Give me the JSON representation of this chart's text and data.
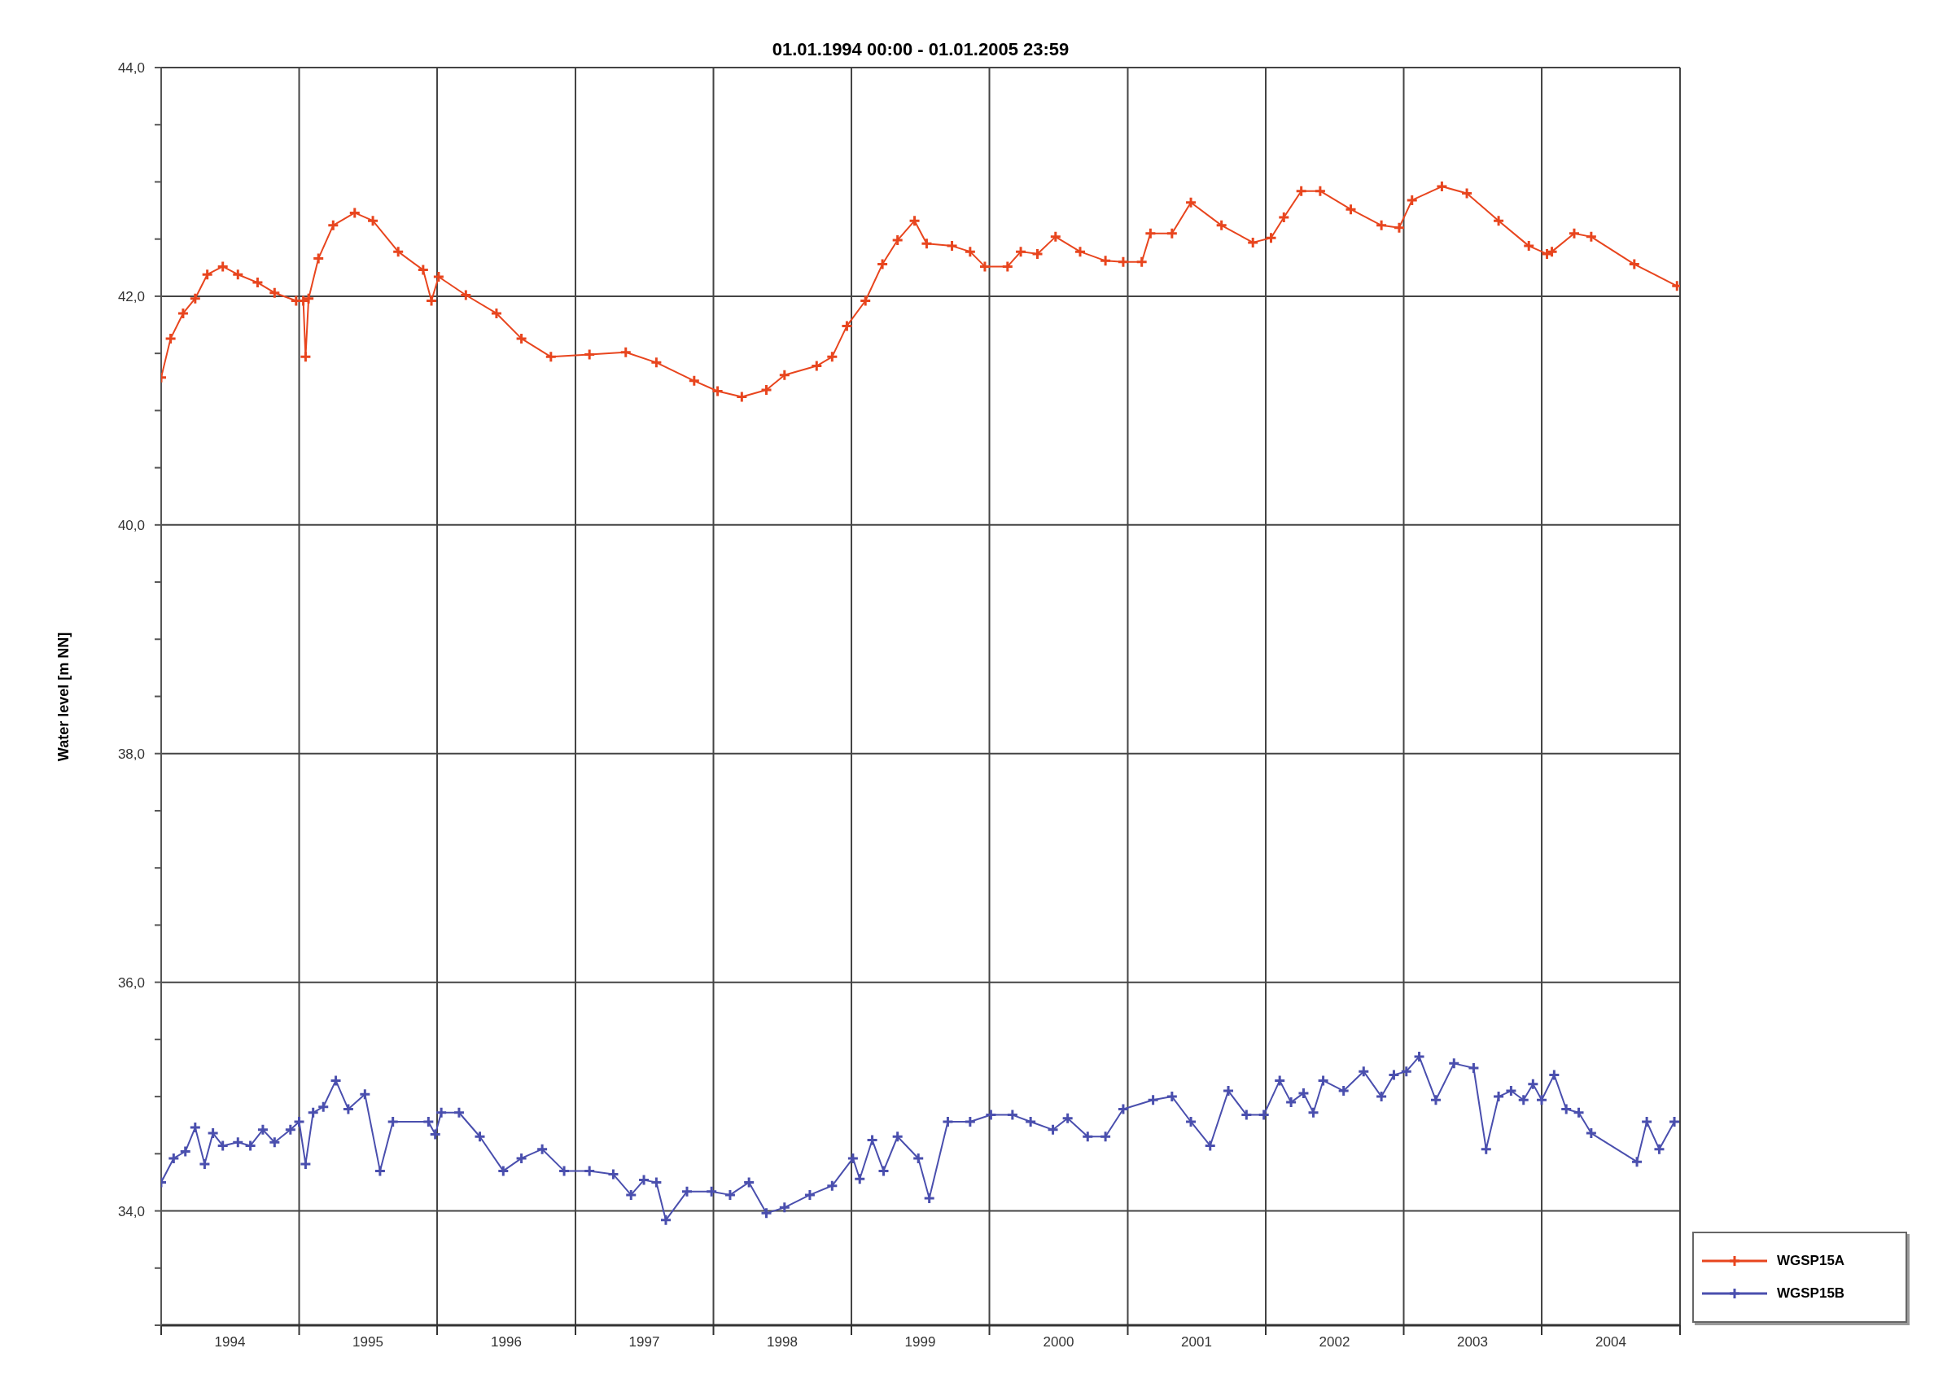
{
  "chart_data": {
    "type": "line",
    "title": "01.01.1994 00:00 - 01.01.2005 23:59",
    "ylabel": "Water level [m NN]",
    "xlim": [
      "1994-01-01",
      "2005-01-01"
    ],
    "xticks": [
      {
        "value": "1994-01-01",
        "label": null
      },
      {
        "value": "1994-07-02",
        "label": "1994"
      },
      {
        "value": "1995-01-01",
        "label": null
      },
      {
        "value": "1995-07-02",
        "label": "1995"
      },
      {
        "value": "1996-01-01",
        "label": null
      },
      {
        "value": "1996-07-02",
        "label": "1996"
      },
      {
        "value": "1997-01-01",
        "label": null
      },
      {
        "value": "1997-07-02",
        "label": "1997"
      },
      {
        "value": "1998-01-01",
        "label": null
      },
      {
        "value": "1998-07-02",
        "label": "1998"
      },
      {
        "value": "1999-01-01",
        "label": null
      },
      {
        "value": "1999-07-02",
        "label": "1999"
      },
      {
        "value": "2000-01-01",
        "label": null
      },
      {
        "value": "2000-07-02",
        "label": "2000"
      },
      {
        "value": "2001-01-01",
        "label": null
      },
      {
        "value": "2001-07-02",
        "label": "2001"
      },
      {
        "value": "2002-01-01",
        "label": null
      },
      {
        "value": "2002-07-02",
        "label": "2002"
      },
      {
        "value": "2003-01-01",
        "label": null
      },
      {
        "value": "2003-07-02",
        "label": "2003"
      },
      {
        "value": "2004-01-01",
        "label": null
      },
      {
        "value": "2004-07-02",
        "label": "2004"
      },
      {
        "value": "2005-01-01",
        "label": null
      }
    ],
    "ylim": [
      33,
      44
    ],
    "yticks": [
      {
        "value": 33,
        "label": null
      },
      {
        "value": 33.5,
        "label": null
      },
      {
        "value": 34,
        "label": "34,0"
      },
      {
        "value": 34.5,
        "label": null
      },
      {
        "value": 35,
        "label": null
      },
      {
        "value": 35.5,
        "label": null
      },
      {
        "value": 36,
        "label": "36,0"
      },
      {
        "value": 36.5,
        "label": null
      },
      {
        "value": 37,
        "label": null
      },
      {
        "value": 37.5,
        "label": null
      },
      {
        "value": 38,
        "label": "38,0"
      },
      {
        "value": 38.5,
        "label": null
      },
      {
        "value": 39,
        "label": null
      },
      {
        "value": 39.5,
        "label": null
      },
      {
        "value": 40,
        "label": "40,0"
      },
      {
        "value": 40.5,
        "label": null
      },
      {
        "value": 41,
        "label": null
      },
      {
        "value": 41.5,
        "label": null
      },
      {
        "value": 42,
        "label": "42,0"
      },
      {
        "value": 42.5,
        "label": null
      },
      {
        "value": 43,
        "label": null
      },
      {
        "value": 43.5,
        "label": null
      },
      {
        "value": 44,
        "label": "44,0"
      }
    ],
    "grid": true,
    "legend": "bottom right",
    "marker": "cross",
    "line_style": "solid",
    "series": [
      {
        "name": "WGSP15A",
        "color": "#e8451e",
        "x": [
          "1994-01-01",
          "1994-01-26",
          "1994-02-28",
          "1994-04-01",
          "1994-05-03",
          "1994-06-13",
          "1994-07-23",
          "1994-09-13",
          "1994-10-28",
          "1994-12-24",
          "1995-01-12",
          "1995-01-18",
          "1995-01-26",
          "1995-02-21",
          "1995-04-01",
          "1995-05-28",
          "1995-07-15",
          "1995-09-20",
          "1995-11-25",
          "1995-12-17",
          "1996-01-05",
          "1996-03-17",
          "1996-06-06",
          "1996-08-11",
          "1996-10-28",
          "1997-02-07",
          "1997-05-14",
          "1997-08-03",
          "1997-11-11",
          "1998-01-12",
          "1998-03-17",
          "1998-05-21",
          "1998-07-08",
          "1998-10-01",
          "1998-11-11",
          "1998-12-20",
          "1999-02-07",
          "1999-03-24",
          "1999-05-03",
          "1999-06-17",
          "1999-07-19",
          "1999-09-24",
          "1999-11-11",
          "1999-12-20",
          "2000-02-18",
          "2000-03-24",
          "2000-05-07",
          "2000-06-24",
          "2000-08-28",
          "2000-11-03",
          "2000-12-20",
          "2001-02-07",
          "2001-03-02",
          "2001-04-28",
          "2001-06-17",
          "2001-09-06",
          "2001-11-28",
          "2002-01-15",
          "2002-02-18",
          "2002-04-05",
          "2002-05-25",
          "2002-08-14",
          "2002-11-03",
          "2002-12-20",
          "2003-01-23",
          "2003-04-12",
          "2003-06-17",
          "2003-09-09",
          "2003-11-28",
          "2004-01-15",
          "2004-01-28",
          "2004-03-27",
          "2004-05-11",
          "2004-09-02",
          "2004-12-24"
        ],
        "values": [
          41.29,
          41.63,
          41.85,
          41.98,
          42.19,
          42.26,
          42.19,
          42.12,
          42.03,
          41.96,
          41.96,
          41.47,
          41.98,
          42.33,
          42.62,
          42.73,
          42.66,
          42.39,
          42.23,
          41.96,
          42.17,
          42.01,
          41.85,
          41.63,
          41.47,
          41.49,
          41.51,
          41.42,
          41.26,
          41.17,
          41.12,
          41.18,
          41.31,
          41.39,
          41.47,
          41.74,
          41.96,
          42.28,
          42.49,
          42.66,
          42.46,
          42.44,
          42.39,
          42.26,
          42.26,
          42.39,
          42.37,
          42.52,
          42.39,
          42.31,
          42.3,
          42.3,
          42.55,
          42.55,
          42.82,
          42.62,
          42.47,
          42.51,
          42.69,
          42.92,
          42.92,
          42.76,
          42.62,
          42.6,
          42.84,
          42.96,
          42.9,
          42.66,
          42.44,
          42.37,
          42.39,
          42.55,
          42.52,
          42.28,
          42.09
        ]
      },
      {
        "name": "WGSP15B",
        "color": "#4a4fae",
        "x": [
          "1994-01-01",
          "1994-02-03",
          "1994-03-06",
          "1994-04-01",
          "1994-04-26",
          "1994-05-18",
          "1994-06-13",
          "1994-07-23",
          "1994-08-25",
          "1994-09-27",
          "1994-10-28",
          "1994-12-09",
          "1995-01-01",
          "1995-01-18",
          "1995-02-07",
          "1995-03-06",
          "1995-04-08",
          "1995-05-11",
          "1995-06-24",
          "1995-08-03",
          "1995-09-06",
          "1995-12-09",
          "1995-12-27",
          "1996-01-12",
          "1996-02-28",
          "1996-04-23",
          "1996-06-24",
          "1996-08-11",
          "1996-10-05",
          "1996-12-02",
          "1997-02-07",
          "1997-04-11",
          "1997-05-28",
          "1997-07-01",
          "1997-08-03",
          "1997-08-28",
          "1997-10-23",
          "1997-12-27",
          "1998-02-14",
          "1998-04-05",
          "1998-05-21",
          "1998-07-08",
          "1998-09-13",
          "1998-11-11",
          "1999-01-05",
          "1999-01-23",
          "1999-02-25",
          "1999-03-27",
          "1999-05-03",
          "1999-06-27",
          "1999-07-26",
          "1999-09-13",
          "1999-11-11",
          "2000-01-05",
          "2000-03-02",
          "2000-04-19",
          "2000-06-17",
          "2000-07-26",
          "2000-09-17",
          "2000-11-03",
          "2000-12-20",
          "2001-03-09",
          "2001-04-28",
          "2001-06-17",
          "2001-08-07",
          "2001-09-24",
          "2001-11-11",
          "2001-12-27",
          "2002-02-07",
          "2002-03-09",
          "2002-04-11",
          "2002-05-07",
          "2002-06-02",
          "2002-07-26",
          "2002-09-17",
          "2002-11-03",
          "2002-12-06",
          "2003-01-08",
          "2003-02-11",
          "2003-03-27",
          "2003-05-14",
          "2003-07-05",
          "2003-08-07",
          "2003-09-09",
          "2003-10-12",
          "2003-11-14",
          "2003-12-09",
          "2004-01-01",
          "2004-02-03",
          "2004-03-06",
          "2004-04-08",
          "2004-05-11",
          "2004-09-09",
          "2004-10-05",
          "2004-11-07",
          "2004-12-17"
        ],
        "values": [
          34.25,
          34.46,
          34.52,
          34.73,
          34.41,
          34.68,
          34.57,
          34.6,
          34.57,
          34.71,
          34.6,
          34.71,
          34.78,
          34.41,
          34.86,
          34.91,
          35.14,
          34.89,
          35.02,
          34.35,
          34.78,
          34.78,
          34.67,
          34.86,
          34.86,
          34.65,
          34.35,
          34.46,
          34.54,
          34.35,
          34.35,
          34.32,
          34.14,
          34.27,
          34.25,
          33.92,
          34.17,
          34.17,
          34.14,
          34.25,
          33.98,
          34.03,
          34.14,
          34.22,
          34.46,
          34.28,
          34.62,
          34.35,
          34.65,
          34.46,
          34.11,
          34.78,
          34.78,
          34.84,
          34.84,
          34.78,
          34.71,
          34.81,
          34.65,
          34.65,
          34.89,
          34.97,
          35.0,
          34.78,
          34.57,
          35.05,
          34.84,
          34.84,
          35.14,
          34.95,
          35.03,
          34.86,
          35.14,
          35.05,
          35.22,
          35.0,
          35.19,
          35.22,
          35.35,
          34.97,
          35.29,
          35.25,
          34.54,
          35.0,
          35.05,
          34.97,
          35.11,
          34.97,
          35.19,
          34.89,
          34.86,
          34.68,
          34.43,
          34.78,
          34.54,
          34.78
        ]
      }
    ]
  }
}
